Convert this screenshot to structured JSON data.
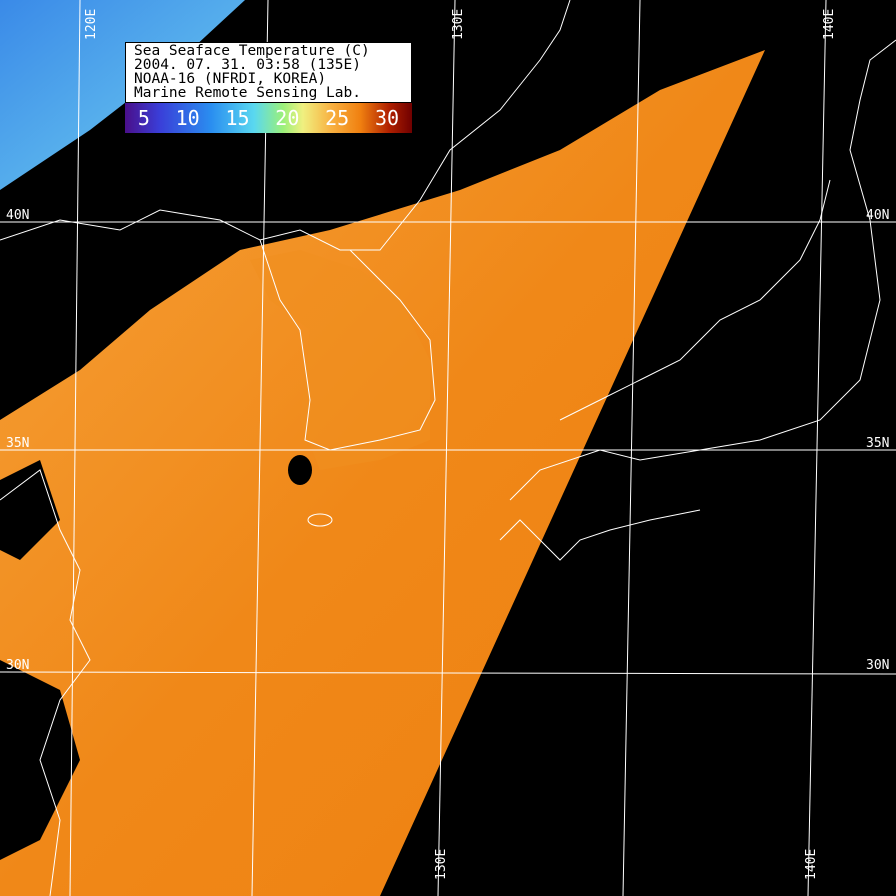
{
  "legend": {
    "title": "Sea Seaface Temperature (C)",
    "datetime": "2004. 07. 31.  03:58 (135E)",
    "satellite": "NOAA-16 (NFRDI, KOREA)",
    "lab": "Marine Remote Sensing Lab.",
    "scale_ticks": [
      "5",
      "10",
      "15",
      "20",
      "25",
      "30"
    ],
    "scale_colors": [
      "#4a0f8a",
      "#2a8ef0",
      "#5ad8f0",
      "#f0f080",
      "#f08010",
      "#700000"
    ]
  },
  "grid": {
    "longitudes_top": [
      "120E",
      "130E",
      "140E"
    ],
    "longitudes_bottom": [
      "130E",
      "140E"
    ],
    "latitudes_left": [
      "40N",
      "35N",
      "30N"
    ],
    "latitudes_right": [
      "40N",
      "35N",
      "30N"
    ]
  },
  "colors": {
    "sea_warm": "#f08a18",
    "sea_cold": "#3aa0f0",
    "land_cloud": "#000000",
    "coast": "#ffffff"
  }
}
